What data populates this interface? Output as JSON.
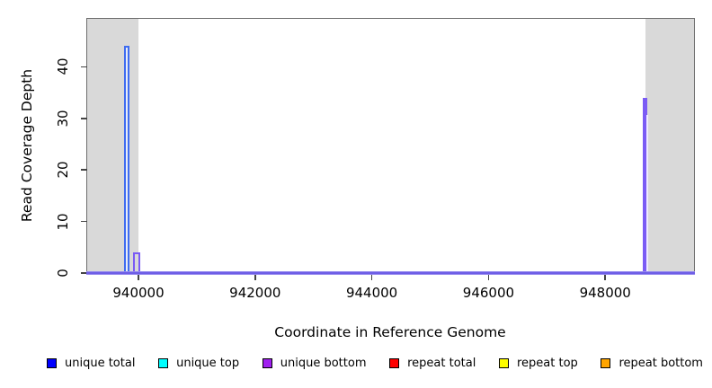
{
  "chart_data": {
    "type": "bar",
    "subtype": "read-coverage-depth-histogram",
    "title": "",
    "xlabel": "Coordinate in Reference Genome",
    "ylabel": "Read Coverage Depth",
    "xlim": [
      939122,
      949522
    ],
    "ylim": [
      0,
      49.3
    ],
    "xticks": [
      940000,
      942000,
      944000,
      946000,
      948000
    ],
    "xtick_labels": [
      "940000",
      "942000",
      "944000",
      "946000",
      "948000"
    ],
    "yticks": [
      0,
      10,
      20,
      30,
      40
    ],
    "ytick_labels": [
      "0",
      "10",
      "20",
      "30",
      "40"
    ],
    "grid": false,
    "frame_color": "#6e6e6e",
    "plot_background": "#ffffff",
    "shade_color": "#d9d9d9",
    "shaded_regions": [
      {
        "x_start": 939122,
        "x_end": 940000
      },
      {
        "x_start": 948683,
        "x_end": 949522
      }
    ],
    "baseline": {
      "value": 0,
      "series": "unique bottom",
      "color": "#5a48e2",
      "halo": "#a89ef2"
    },
    "bars": [
      {
        "series": "unique total",
        "x_start": 939754,
        "x_end": 939846,
        "height": 44,
        "edge_color": "#3f6cf0",
        "fill_color": "#e9eef9"
      },
      {
        "series": "unique bottom",
        "x_start": 939915,
        "x_end": 940030,
        "height": 4,
        "edge_color": "#7b5cf5",
        "fill_color": "transparent"
      },
      {
        "series": "unique bottom",
        "x_start": 948645,
        "x_end": 948722,
        "height": 34,
        "inner_height": 31,
        "edge_color": "#7b5cf5",
        "fill_color": "#7b5cf5",
        "inner_color": "#efeaff"
      }
    ],
    "legend": {
      "position": "bottom",
      "swatch_border": "#000000",
      "items": [
        {
          "label": "unique total",
          "color": "#0000ff"
        },
        {
          "label": "unique top",
          "color": "#00ffff"
        },
        {
          "label": "unique bottom",
          "color": "#a020f0"
        },
        {
          "label": "repeat total",
          "color": "#ff0000"
        },
        {
          "label": "repeat top",
          "color": "#ffff00"
        },
        {
          "label": "repeat bottom",
          "color": "#ffa500"
        }
      ]
    }
  }
}
